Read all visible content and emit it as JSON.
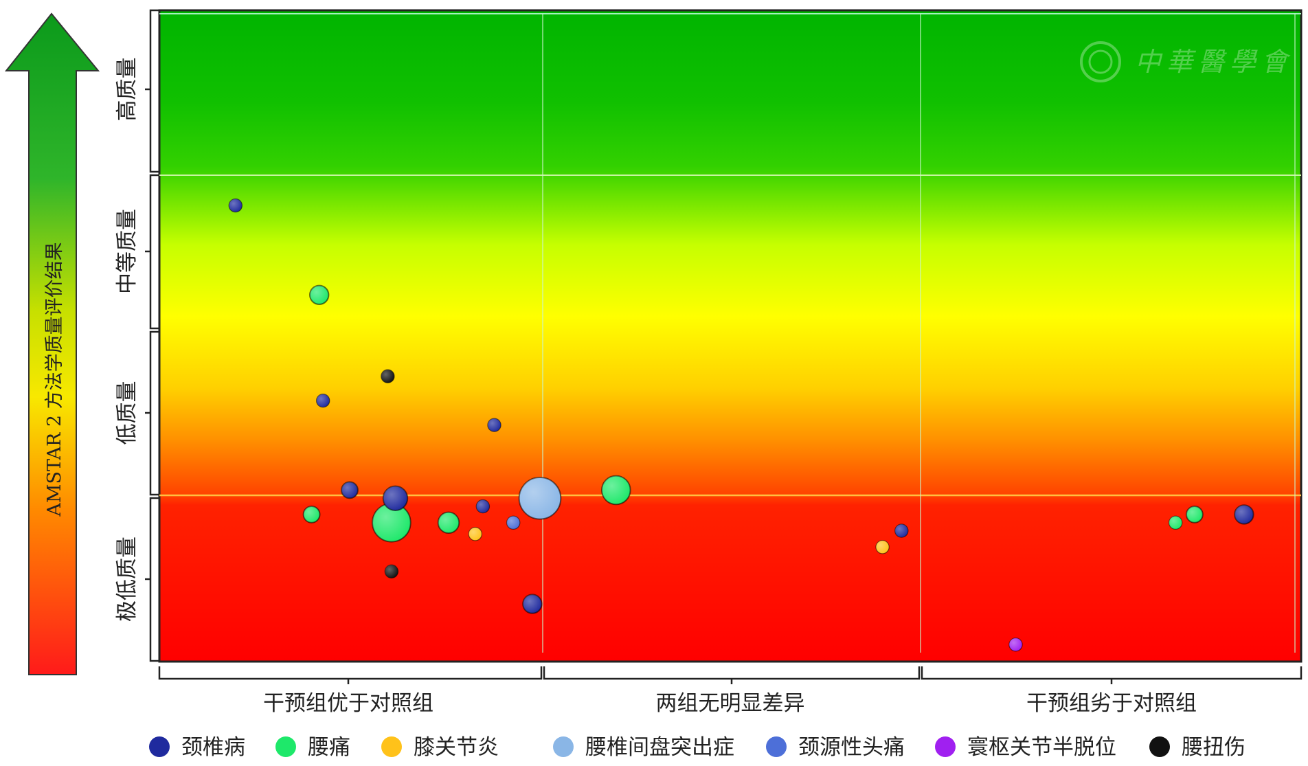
{
  "chart_data": {
    "type": "scatter",
    "title": "",
    "vertical_label": "AMSTAR 2 方法学质量评价结果",
    "watermark_text": "中華醫學會",
    "x_categories": [
      "干预组优于对照组",
      "两组无明显差异",
      "干预组劣于对照组"
    ],
    "y_categories": [
      "极低质量",
      "低质量",
      "中等质量",
      "高质量"
    ],
    "background": "red-to-green vertical gradient (low quality red, high quality green)",
    "grid": true,
    "legend_position": "bottom",
    "series": [
      {
        "name": "颈椎病",
        "color": "#1f2a9e",
        "points": [
          {
            "x": 0.5,
            "y": 1.05,
            "size": 2
          },
          {
            "x": 0.2,
            "y": 2.8,
            "size": 1
          },
          {
            "x": 0.43,
            "y": 1.6,
            "size": 1
          },
          {
            "x": 0.62,
            "y": 1.0,
            "size": 6
          },
          {
            "x": 0.85,
            "y": 0.95,
            "size": 1
          },
          {
            "x": 0.88,
            "y": 1.45,
            "size": 1
          },
          {
            "x": 1.95,
            "y": 0.8,
            "size": 1
          },
          {
            "x": 2.85,
            "y": 0.9,
            "size": 3
          },
          {
            "x": 0.98,
            "y": 0.35,
            "size": 3
          }
        ]
      },
      {
        "name": "腰痛",
        "color": "#1ee86a",
        "points": [
          {
            "x": 0.42,
            "y": 2.25,
            "size": 3
          },
          {
            "x": 0.4,
            "y": 0.9,
            "size": 2
          },
          {
            "x": 0.61,
            "y": 0.85,
            "size": 18
          },
          {
            "x": 0.76,
            "y": 0.85,
            "size": 4
          },
          {
            "x": 1.2,
            "y": 1.05,
            "size": 9
          },
          {
            "x": 2.72,
            "y": 0.9,
            "size": 2
          },
          {
            "x": 2.67,
            "y": 0.85,
            "size": 1
          }
        ]
      },
      {
        "name": "膝关节炎",
        "color": "#ffc21a",
        "points": [
          {
            "x": 0.83,
            "y": 0.78,
            "size": 1
          },
          {
            "x": 1.9,
            "y": 0.7,
            "size": 1
          }
        ]
      },
      {
        "name": "腰椎间盘突出症",
        "color": "#8ab6e6",
        "points": [
          {
            "x": 1.0,
            "y": 1.0,
            "size": 22
          }
        ]
      },
      {
        "name": "颈源性头痛",
        "color": "#4d6fd8",
        "points": [
          {
            "x": 0.93,
            "y": 0.85,
            "size": 1
          }
        ]
      },
      {
        "name": "寰枢关节半脱位",
        "color": "#a020f0",
        "points": [
          {
            "x": 2.25,
            "y": 0.1,
            "size": 1
          }
        ]
      },
      {
        "name": "腰扭伤",
        "color": "#111111",
        "points": [
          {
            "x": 0.6,
            "y": 1.75,
            "size": 1
          },
          {
            "x": 0.61,
            "y": 0.55,
            "size": 1
          }
        ]
      }
    ]
  }
}
